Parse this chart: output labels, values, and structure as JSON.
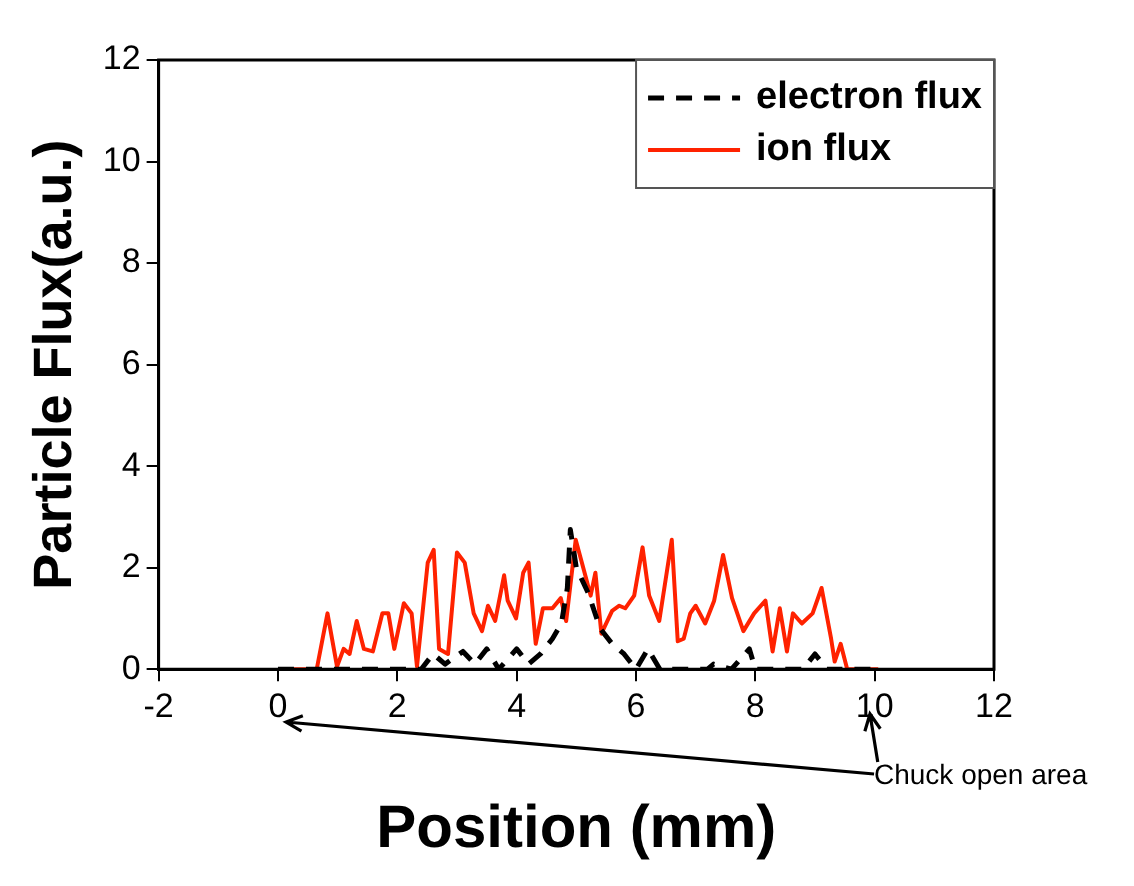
{
  "chart_data": {
    "type": "line",
    "xlabel": "Position (mm)",
    "ylabel": "Particle Flux(a.u.)",
    "xlim": [
      -2,
      12
    ],
    "ylim": [
      0,
      12
    ],
    "xticks": [
      -2,
      0,
      2,
      4,
      6,
      8,
      10,
      12
    ],
    "yticks": [
      0,
      2,
      4,
      6,
      8,
      10,
      12
    ],
    "legend": "top right",
    "marker": "none",
    "annotations": [
      "Chuck open area"
    ],
    "series": [
      {
        "name": "electron flux",
        "color": "#000000",
        "line_style": "dashed",
        "x": [
          0,
          2.4,
          2.6,
          2.8,
          3.1,
          3.3,
          3.5,
          3.7,
          4.0,
          4.2,
          4.4,
          4.6,
          4.75,
          4.85,
          4.9,
          5.0,
          5.2,
          5.4,
          5.6,
          5.8,
          6.0,
          6.2,
          6.4,
          7.2,
          7.3,
          7.6,
          7.9,
          8.0,
          8.8,
          9.0,
          9.2,
          10.0
        ],
        "values": [
          0,
          0,
          0.3,
          0.1,
          0.35,
          0.1,
          0.4,
          0,
          0.4,
          0.1,
          0.3,
          0.6,
          0.9,
          1.6,
          2.75,
          2.0,
          1.5,
          0.8,
          0.5,
          0.3,
          0,
          0.4,
          0,
          0,
          0.1,
          0,
          0.4,
          0,
          0,
          0.3,
          0,
          0
        ]
      },
      {
        "name": "ion flux",
        "color": "#ff2200",
        "line_style": "solid",
        "x": [
          0,
          0.6,
          0.65,
          0.83,
          0.99,
          1.1,
          1.2,
          1.32,
          1.44,
          1.59,
          1.75,
          1.85,
          1.95,
          2.11,
          2.24,
          2.33,
          2.51,
          2.61,
          2.7,
          2.85,
          3.0,
          3.13,
          3.28,
          3.42,
          3.52,
          3.64,
          3.79,
          3.85,
          3.99,
          4.11,
          4.2,
          4.32,
          4.44,
          4.6,
          4.74,
          4.83,
          4.99,
          5.15,
          5.24,
          5.32,
          5.42,
          5.6,
          5.72,
          5.82,
          5.97,
          6.11,
          6.22,
          6.39,
          6.6,
          6.7,
          6.8,
          6.91,
          7.0,
          7.16,
          7.31,
          7.46,
          7.61,
          7.8,
          7.98,
          8.17,
          8.29,
          8.41,
          8.53,
          8.63,
          8.78,
          8.96,
          9.11,
          9.27,
          9.33,
          9.43,
          9.54,
          10.06
        ],
        "values": [
          0,
          0,
          0,
          1.1,
          0.05,
          0.4,
          0.3,
          0.95,
          0.4,
          0.35,
          1.1,
          1.1,
          0.4,
          1.3,
          1.1,
          0.05,
          2.1,
          2.35,
          0.4,
          0.3,
          2.3,
          2.1,
          1.1,
          0.75,
          1.25,
          0.95,
          1.85,
          1.35,
          1.0,
          1.9,
          2.1,
          0.5,
          1.2,
          1.2,
          1.4,
          0.95,
          2.55,
          1.85,
          1.45,
          1.9,
          0.7,
          1.15,
          1.25,
          1.2,
          1.45,
          2.4,
          1.45,
          0.95,
          2.55,
          0.55,
          0.6,
          1.1,
          1.25,
          0.9,
          1.35,
          2.25,
          1.4,
          0.75,
          1.1,
          1.35,
          0.35,
          1.2,
          0.35,
          1.1,
          0.9,
          1.1,
          1.6,
          0.6,
          0.15,
          0.5,
          0,
          0
        ]
      }
    ]
  }
}
